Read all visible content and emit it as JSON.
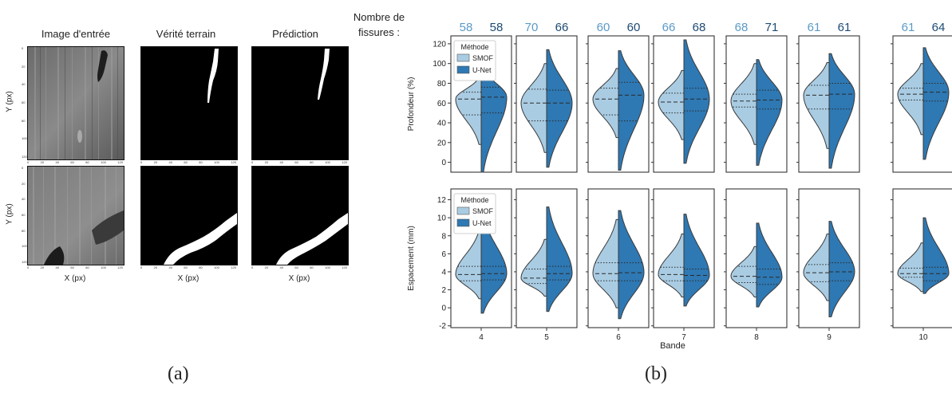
{
  "left_panel": {
    "col_titles": [
      "Image d'entrée",
      "Vérité terrain",
      "Prédiction"
    ],
    "ylabel": "Y (px)",
    "xlabel": "X (px)",
    "ticks": [
      "0",
      "20",
      "40",
      "60",
      "80",
      "100",
      "120"
    ],
    "caption": "(a)"
  },
  "right_panel": {
    "caption": "(b)",
    "count_header": [
      "Nombre de",
      "fissures :"
    ],
    "colors": {
      "smof": "#a9cce3",
      "unet": "#2e78b3",
      "count_smof": "#5b9ac7",
      "count_unet": "#1c4a73"
    },
    "chart_data": {
      "type": "violin",
      "xlabel": "Bande",
      "categories": [
        "4",
        "5",
        "6",
        "7",
        "8",
        "9",
        "10"
      ],
      "counts": {
        "SMOF": [
          58,
          70,
          60,
          66,
          68,
          61,
          61
        ],
        "U-Net": [
          58,
          66,
          60,
          68,
          71,
          61,
          64
        ]
      },
      "legend": {
        "title": "Méthode",
        "entries": [
          "SMOF",
          "U-Net"
        ],
        "placement": "top-left"
      },
      "subplots": [
        {
          "ylabel": "Profondeur (%)",
          "ylim": [
            -10,
            128
          ],
          "yticks": [
            0,
            20,
            40,
            60,
            80,
            100,
            120
          ],
          "quartiles": {
            "SMOF": [
              [
                48,
                64,
                71
              ],
              [
                42,
                60,
                74
              ],
              [
                48,
                64,
                75
              ],
              [
                50,
                61,
                70
              ],
              [
                56,
                62,
                69
              ],
              [
                54,
                68,
                78
              ],
              [
                63,
                69,
                75
              ]
            ],
            "U-Net": [
              [
                50,
                66,
                76
              ],
              [
                42,
                60,
                73
              ],
              [
                42,
                68,
                81
              ],
              [
                52,
                64,
                75
              ],
              [
                54,
                63,
                73
              ],
              [
                54,
                69,
                80
              ],
              [
                62,
                71,
                80
              ]
            ]
          },
          "range": {
            "SMOF": [
              [
                18,
                86
              ],
              [
                10,
                100
              ],
              [
                25,
                95
              ],
              [
                23,
                93
              ],
              [
                18,
                100
              ],
              [
                14,
                101
              ],
              [
                28,
                100
              ]
            ],
            "U-Net": [
              [
                -10,
                96
              ],
              [
                -5,
                114
              ],
              [
                -8,
                113
              ],
              [
                -1,
                124
              ],
              [
                -3,
                104
              ],
              [
                -6,
                110
              ],
              [
                3,
                116
              ]
            ]
          }
        },
        {
          "ylabel": "Espacement (mm)",
          "ylim": [
            -2.2,
            13.2
          ],
          "yticks": [
            -2,
            0,
            2,
            4,
            6,
            8,
            10,
            12
          ],
          "quartiles": {
            "SMOF": [
              [
                3.0,
                3.7,
                4.6
              ],
              [
                2.7,
                3.3,
                4.3
              ],
              [
                3.0,
                3.8,
                5.0
              ],
              [
                3.0,
                3.7,
                4.5
              ],
              [
                2.8,
                3.5,
                4.6
              ],
              [
                2.9,
                3.9,
                4.8
              ],
              [
                3.4,
                3.8,
                4.4
              ]
            ],
            "U-Net": [
              [
                3.1,
                3.8,
                4.6
              ],
              [
                3.1,
                3.8,
                4.6
              ],
              [
                3.0,
                3.9,
                5.0
              ],
              [
                3.0,
                3.6,
                4.3
              ],
              [
                2.6,
                3.4,
                4.3
              ],
              [
                3.0,
                4.0,
                5.0
              ],
              [
                3.0,
                3.8,
                4.5
              ]
            ],
            "note": "dashed = median, dotted = quartiles"
          },
          "range": {
            "SMOF": [
              [
                1.0,
                8.6
              ],
              [
                1.3,
                7.6
              ],
              [
                0.0,
                9.8
              ],
              [
                1.2,
                8.2
              ],
              [
                1.2,
                6.8
              ],
              [
                0.8,
                8.2
              ],
              [
                1.8,
                7.2
              ]
            ],
            "U-Net": [
              [
                -0.6,
                10.4
              ],
              [
                -0.4,
                11.2
              ],
              [
                -1.2,
                10.8
              ],
              [
                0.2,
                10.4
              ],
              [
                0.1,
                9.4
              ],
              [
                -1.0,
                9.6
              ],
              [
                1.6,
                10.0
              ]
            ]
          }
        }
      ]
    }
  }
}
